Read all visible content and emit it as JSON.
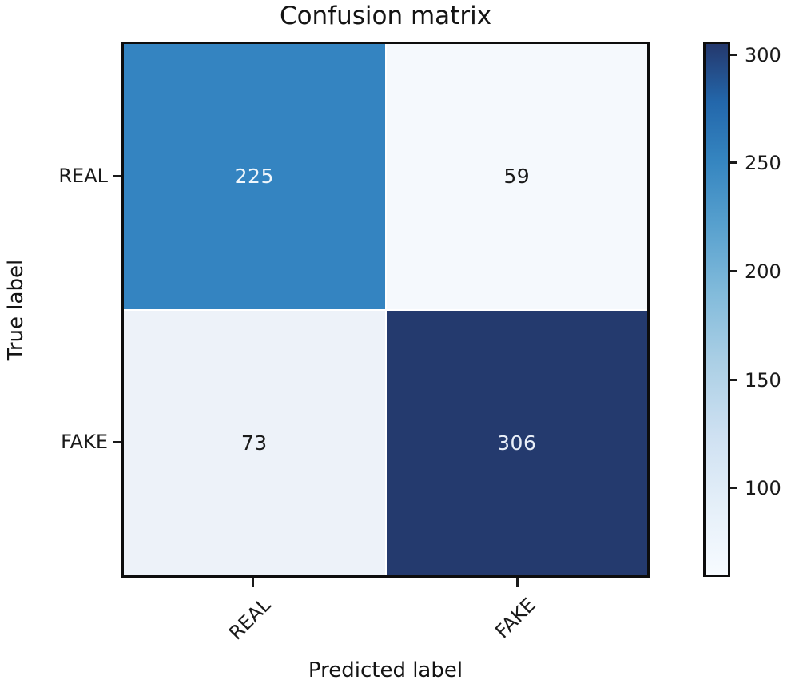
{
  "figure": {
    "title": "Confusion matrix",
    "xlabel": "Predicted label",
    "ylabel": "True label"
  },
  "chart_data": {
    "type": "heatmap",
    "title": "Confusion matrix",
    "xlabel": "Predicted label",
    "ylabel": "True label",
    "x_categories": [
      "REAL",
      "FAKE"
    ],
    "y_categories": [
      "REAL",
      "FAKE"
    ],
    "matrix": [
      [
        225,
        59
      ],
      [
        73,
        306
      ]
    ],
    "vmin": 59,
    "vmax": 306,
    "colormap": "Blues",
    "colorbar": {
      "position": "right",
      "ticks": [
        100,
        150,
        200,
        250,
        300
      ]
    },
    "grid": false,
    "legend": "none",
    "x_tick_rotation_deg": 45
  },
  "styles": {
    "background": "#ffffff",
    "axis_color": "#0d0d0d",
    "tick_color": "#1a1a1a",
    "cell_bg": [
      [
        "#3484c1",
        "#f5f9fd"
      ],
      [
        "#edf2f9",
        "#243a6e"
      ]
    ],
    "cell_fg": [
      [
        "#f0f6fb",
        "#1a1a1a"
      ],
      [
        "#1a1a1a",
        "#e8eef7"
      ]
    ],
    "colorbar_top": "#24386d",
    "colorbar_bottom": "#f7fbff"
  }
}
